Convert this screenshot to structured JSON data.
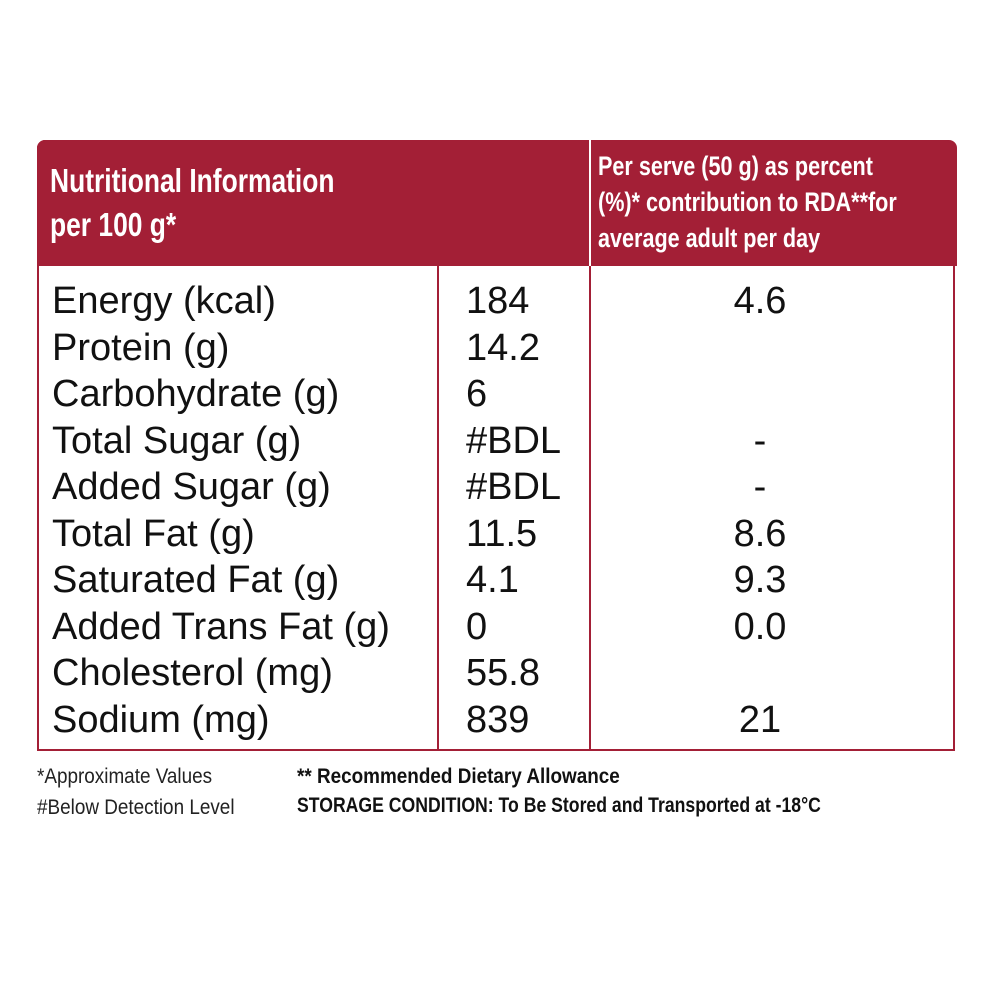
{
  "header": {
    "left": [
      "Nutritional Information",
      "per 100 g*"
    ],
    "right": [
      "Per serve (50 g) as percent",
      "(%)* contribution to RDA**for",
      "average adult per day"
    ]
  },
  "table": {
    "rows": [
      [
        "Energy (kcal)",
        "184",
        "4.6"
      ],
      [
        "Protein (g)",
        "14.2"
      ],
      [
        "Carbohydrate (g)",
        "6"
      ],
      [
        "Total Sugar (g)",
        "#BDL",
        "-"
      ],
      [
        "Added Sugar (g)",
        "#BDL",
        "-"
      ],
      [
        "Total Fat (g)",
        "11.5",
        "8.6"
      ],
      [
        "Saturated Fat (g)",
        "4.1",
        "9.3"
      ],
      [
        "Added Trans Fat (g)",
        "0",
        "0.0"
      ],
      [
        "Cholesterol (mg)",
        "55.8"
      ],
      [
        "Sodium (mg)",
        "839",
        "21"
      ]
    ]
  },
  "footnotes": {
    "approximate": "*Approximate Values",
    "bdl": "#Below Detection Level",
    "rda": "** Recommended Dietary Allowance",
    "storage": "STORAGE CONDITION: To Be Stored and Transported at -18°C"
  }
}
